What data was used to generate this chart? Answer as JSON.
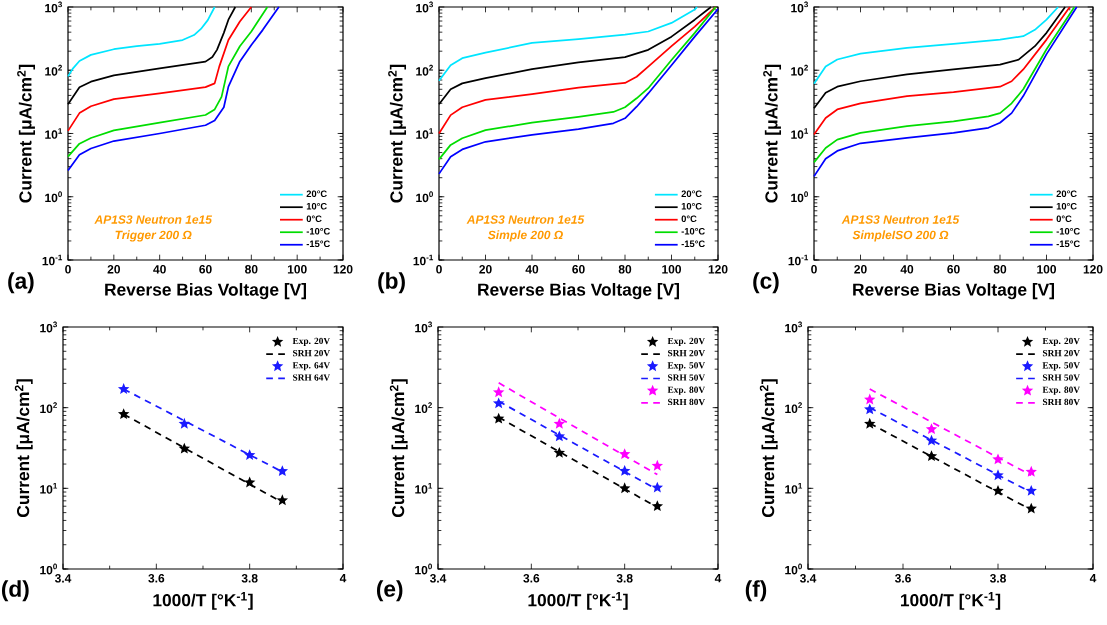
{
  "chart_data": [
    {
      "type": "line",
      "xlabel": "Reverse Bias Voltage [V]",
      "ylabel": "Current [μA/cm$^{2}$]",
      "log": "y",
      "legend": "bottom right",
      "annotations": [
        "(a)",
        "AP1S3 Neutron 1e15",
        "Trigger 200 Ω"
      ],
      "xlim": [
        0,
        120
      ],
      "xticks": [
        0,
        20,
        40,
        60,
        80,
        100,
        120
      ],
      "ylim": [
        0.1,
        1000
      ],
      "yticks": [
        {
          "value": 0.1,
          "label": "10$^{-1}$"
        },
        {
          "value": 1,
          "label": "10$^{0}$"
        },
        {
          "value": 10,
          "label": "10$^{1}$"
        },
        {
          "value": 100,
          "label": "10$^{2}$"
        },
        {
          "value": 1000,
          "label": "10$^{3}$"
        }
      ],
      "series": [
        {
          "name": "20°C",
          "color": "#00e5ff",
          "x": [
            0,
            2,
            5,
            10,
            20,
            30,
            40,
            50,
            55,
            58,
            61,
            64
          ],
          "values": [
            80,
            105,
            140,
            175,
            215,
            240,
            262,
            300,
            360,
            450,
            620,
            1000
          ]
        },
        {
          "name": "10°C",
          "color": "#000000",
          "x": [
            0,
            5,
            10,
            20,
            40,
            60,
            63,
            65,
            68,
            70,
            73
          ],
          "values": [
            29,
            54,
            66,
            83,
            107,
            137,
            162,
            210,
            390,
            630,
            1000
          ]
        },
        {
          "name": "0°C",
          "color": "#ff0000",
          "x": [
            0,
            5,
            10,
            20,
            40,
            60,
            64,
            66,
            70,
            75,
            80
          ],
          "values": [
            11,
            21,
            27,
            35,
            43,
            54,
            62,
            114,
            300,
            590,
            1000
          ]
        },
        {
          "name": "-10°C",
          "color": "#00dd00",
          "x": [
            0,
            5,
            10,
            20,
            40,
            60,
            64,
            67,
            70,
            75,
            80,
            87
          ],
          "values": [
            4.3,
            6.9,
            8.5,
            11.2,
            14.8,
            19.6,
            24,
            38,
            115,
            240,
            410,
            1000
          ]
        },
        {
          "name": "-15°C",
          "color": "#0000ff",
          "x": [
            0,
            5,
            10,
            20,
            40,
            60,
            64,
            68,
            70,
            75,
            80,
            85,
            92
          ],
          "values": [
            2.6,
            4.6,
            5.8,
            7.6,
            10,
            13.5,
            16,
            26,
            55,
            138,
            250,
            435,
            1000
          ]
        }
      ]
    },
    {
      "type": "line",
      "xlabel": "Reverse Bias Voltage [V]",
      "ylabel": "Current [μA/cm$^{2}$]",
      "log": "y",
      "legend": "bottom right",
      "annotations": [
        "(b)",
        "AP1S3 Neutron 1e15",
        "Simple 200 Ω"
      ],
      "xlim": [
        0,
        120
      ],
      "xticks": [
        0,
        20,
        40,
        60,
        80,
        100,
        120
      ],
      "ylim": [
        0.1,
        1000
      ],
      "yticks": [
        {
          "value": 0.1,
          "label": "10$^{-1}$"
        },
        {
          "value": 1,
          "label": "10$^{0}$"
        },
        {
          "value": 10,
          "label": "10$^{1}$"
        },
        {
          "value": 100,
          "label": "10$^{2}$"
        },
        {
          "value": 1000,
          "label": "10$^{3}$"
        }
      ],
      "series": [
        {
          "name": "20°C",
          "color": "#00e5ff",
          "x": [
            0,
            5,
            10,
            20,
            40,
            60,
            80,
            90,
            100,
            110,
            111
          ],
          "values": [
            68,
            120,
            155,
            190,
            270,
            310,
            365,
            410,
            560,
            910,
            1000
          ]
        },
        {
          "name": "10°C",
          "color": "#000000",
          "x": [
            0,
            5,
            10,
            20,
            40,
            60,
            80,
            90,
            100,
            110,
            117
          ],
          "values": [
            29,
            50,
            62,
            75,
            104,
            133,
            161,
            210,
            340,
            630,
            1000
          ]
        },
        {
          "name": "0°C",
          "color": "#ff0000",
          "x": [
            0,
            5,
            10,
            20,
            40,
            60,
            80,
            85,
            90,
            100,
            110,
            119
          ],
          "values": [
            10,
            19.5,
            26,
            34,
            42,
            53,
            63,
            79,
            114,
            240,
            490,
            1000
          ]
        },
        {
          "name": "-10°C",
          "color": "#00dd00",
          "x": [
            0,
            5,
            10,
            20,
            40,
            60,
            75,
            80,
            85,
            90,
            100,
            110,
            119
          ],
          "values": [
            3.9,
            6.6,
            8.4,
            11.3,
            14.8,
            18.3,
            21.9,
            26,
            36,
            52,
            145,
            390,
            1000
          ]
        },
        {
          "name": "-15°C",
          "color": "#0000ff",
          "x": [
            0,
            5,
            10,
            20,
            40,
            60,
            75,
            80,
            85,
            90,
            100,
            110,
            120
          ],
          "values": [
            2.3,
            4.3,
            5.6,
            7.4,
            9.5,
            11.7,
            14.5,
            17.4,
            26.5,
            43,
            120,
            340,
            930
          ]
        }
      ]
    },
    {
      "type": "line",
      "xlabel": "Reverse Bias Voltage [V]",
      "ylabel": "Current [μA/cm$^{2}$]",
      "log": "y",
      "legend": "bottom right",
      "annotations": [
        "(c)",
        "AP1S3 Neutron 1e15",
        "SimpleISO 200 Ω"
      ],
      "xlim": [
        0,
        120
      ],
      "xticks": [
        0,
        20,
        40,
        60,
        80,
        100,
        120
      ],
      "ylim": [
        0.1,
        1000
      ],
      "yticks": [
        {
          "value": 0.1,
          "label": "10$^{-1}$"
        },
        {
          "value": 1,
          "label": "10$^{0}$"
        },
        {
          "value": 10,
          "label": "10$^{1}$"
        },
        {
          "value": 100,
          "label": "10$^{2}$"
        },
        {
          "value": 1000,
          "label": "10$^{3}$"
        }
      ],
      "series": [
        {
          "name": "20°C",
          "color": "#00e5ff",
          "x": [
            0,
            5,
            10,
            20,
            40,
            60,
            80,
            90,
            95,
            100,
            105
          ],
          "values": [
            61,
            115,
            148,
            183,
            225,
            262,
            305,
            345,
            435,
            630,
            1000
          ]
        },
        {
          "name": "10°C",
          "color": "#000000",
          "x": [
            0,
            5,
            10,
            20,
            40,
            60,
            80,
            88,
            95,
            100,
            108
          ],
          "values": [
            25,
            44,
            55,
            67,
            86,
            103,
            123,
            147,
            240,
            390,
            1000
          ]
        },
        {
          "name": "0°C",
          "color": "#ff0000",
          "x": [
            0,
            5,
            10,
            20,
            40,
            60,
            80,
            85,
            90,
            100,
            110
          ],
          "values": [
            9.6,
            17.6,
            24,
            30,
            39,
            45,
            55,
            67,
            103,
            305,
            1000
          ]
        },
        {
          "name": "-10°C",
          "color": "#00dd00",
          "x": [
            0,
            5,
            10,
            20,
            40,
            60,
            75,
            80,
            85,
            90,
            100,
            112
          ],
          "values": [
            3.5,
            5.9,
            8.0,
            10.2,
            13.1,
            15.6,
            18.7,
            21,
            30,
            50,
            215,
            1000
          ]
        },
        {
          "name": "-15°C",
          "color": "#0000ff",
          "x": [
            0,
            5,
            10,
            20,
            40,
            60,
            75,
            80,
            85,
            90,
            100,
            113
          ],
          "values": [
            2.1,
            4.0,
            5.3,
            7.0,
            8.5,
            10.2,
            12.3,
            14.8,
            21,
            39,
            180,
            1000
          ]
        }
      ]
    },
    {
      "type": "scatter",
      "xlabel": "1000/T [°K$^{-1}$]",
      "ylabel": "Current [μA/cm$^{2}$]",
      "log": "y",
      "legend": "top right",
      "annotations": [
        "(d)"
      ],
      "xlim": [
        3.4,
        4
      ],
      "xticks": [
        3.4,
        3.6,
        3.8,
        4
      ],
      "ylim": [
        1,
        1000
      ],
      "yticks": [
        {
          "value": 1,
          "label": "10$^{0}$"
        },
        {
          "value": 10,
          "label": "10$^{1}$"
        },
        {
          "value": 100,
          "label": "10$^{2}$"
        },
        {
          "value": 1000,
          "label": "10$^{3}$"
        }
      ],
      "series": [
        {
          "name": "Exp. 20V",
          "type": "scatter",
          "marker": "star",
          "color": "#000000",
          "x": [
            3.53,
            3.66,
            3.8,
            3.87
          ],
          "values": [
            83,
            31,
            11.8,
            7.1
          ]
        },
        {
          "name": "SRH 20V",
          "type": "line",
          "line_style": "dashed",
          "color": "#000000",
          "x": [
            3.53,
            3.87
          ],
          "values": [
            83,
            6.7
          ]
        },
        {
          "name": "Exp. 64V",
          "type": "scatter",
          "marker": "star",
          "color": "#1a1aff",
          "x": [
            3.53,
            3.66,
            3.8,
            3.87
          ],
          "values": [
            170,
            63,
            25.8,
            16.3
          ]
        },
        {
          "name": "SRH 64V",
          "type": "line",
          "line_style": "dashed",
          "color": "#1a1aff",
          "x": [
            3.53,
            3.87
          ],
          "values": [
            170,
            16
          ]
        }
      ]
    },
    {
      "type": "scatter",
      "xlabel": "1000/T [°K$^{-1}$]",
      "ylabel": "Current [μA/cm$^{2}$]",
      "log": "y",
      "legend": "top right",
      "annotations": [
        "(e)"
      ],
      "xlim": [
        3.4,
        4
      ],
      "xticks": [
        3.4,
        3.6,
        3.8,
        4
      ],
      "ylim": [
        1,
        1000
      ],
      "yticks": [
        {
          "value": 1,
          "label": "10$^{0}$"
        },
        {
          "value": 10,
          "label": "10$^{1}$"
        },
        {
          "value": 100,
          "label": "10$^{2}$"
        },
        {
          "value": 1000,
          "label": "10$^{3}$"
        }
      ],
      "series": [
        {
          "name": "Exp. 20V",
          "type": "scatter",
          "marker": "star",
          "color": "#000000",
          "x": [
            3.53,
            3.66,
            3.8,
            3.87
          ],
          "values": [
            73,
            27.5,
            10,
            6.0
          ]
        },
        {
          "name": "SRH 20V",
          "type": "line",
          "line_style": "dashed",
          "color": "#000000",
          "x": [
            3.53,
            3.87
          ],
          "values": [
            76,
            5.8
          ]
        },
        {
          "name": "Exp. 50V",
          "type": "scatter",
          "marker": "star",
          "color": "#1a1aff",
          "x": [
            3.53,
            3.66,
            3.8,
            3.87
          ],
          "values": [
            113,
            44,
            16.4,
            10.2
          ]
        },
        {
          "name": "SRH 50V",
          "type": "line",
          "line_style": "dashed",
          "color": "#1a1aff",
          "x": [
            3.53,
            3.87
          ],
          "values": [
            120,
            9.6
          ]
        },
        {
          "name": "Exp. 80V",
          "type": "scatter",
          "marker": "star",
          "color": "#ff00ff",
          "x": [
            3.53,
            3.66,
            3.8,
            3.87
          ],
          "values": [
            155,
            63,
            26.5,
            19
          ]
        },
        {
          "name": "SRH 80V",
          "type": "line",
          "line_style": "dashed",
          "color": "#ff00ff",
          "x": [
            3.53,
            3.87
          ],
          "values": [
            203,
            14.8
          ]
        }
      ]
    },
    {
      "type": "scatter",
      "xlabel": "1000/T [°K$^{-1}$]",
      "ylabel": "Current [μA/cm$^{2}$]",
      "log": "y",
      "legend": "top right",
      "annotations": [
        "(f)"
      ],
      "xlim": [
        3.4,
        4
      ],
      "xticks": [
        3.4,
        3.6,
        3.8,
        4
      ],
      "ylim": [
        1,
        1000
      ],
      "yticks": [
        {
          "value": 1,
          "label": "10$^{0}$"
        },
        {
          "value": 10,
          "label": "10$^{1}$"
        },
        {
          "value": 100,
          "label": "10$^{2}$"
        },
        {
          "value": 1000,
          "label": "10$^{3}$"
        }
      ],
      "series": [
        {
          "name": "Exp. 20V",
          "type": "scatter",
          "marker": "star",
          "color": "#000000",
          "x": [
            3.53,
            3.66,
            3.8,
            3.87
          ],
          "values": [
            63,
            25,
            9.3,
            5.6
          ]
        },
        {
          "name": "SRH 20V",
          "type": "line",
          "line_style": "dashed",
          "color": "#000000",
          "x": [
            3.53,
            3.87
          ],
          "values": [
            64,
            5.4
          ]
        },
        {
          "name": "Exp. 50V",
          "type": "scatter",
          "marker": "star",
          "color": "#1a1aff",
          "x": [
            3.53,
            3.66,
            3.8,
            3.87
          ],
          "values": [
            95,
            39,
            14.5,
            9.3
          ]
        },
        {
          "name": "SRH 50V",
          "type": "line",
          "line_style": "dashed",
          "color": "#1a1aff",
          "x": [
            3.53,
            3.87
          ],
          "values": [
            100,
            8.9
          ]
        },
        {
          "name": "Exp. 80V",
          "type": "scatter",
          "marker": "star",
          "color": "#ff00ff",
          "x": [
            3.53,
            3.66,
            3.8,
            3.87
          ],
          "values": [
            126,
            54,
            22.8,
            16
          ]
        },
        {
          "name": "SRH 80V",
          "type": "line",
          "line_style": "dashed",
          "color": "#ff00ff",
          "x": [
            3.53,
            3.87
          ],
          "values": [
            170,
            14.5
          ]
        }
      ]
    }
  ]
}
